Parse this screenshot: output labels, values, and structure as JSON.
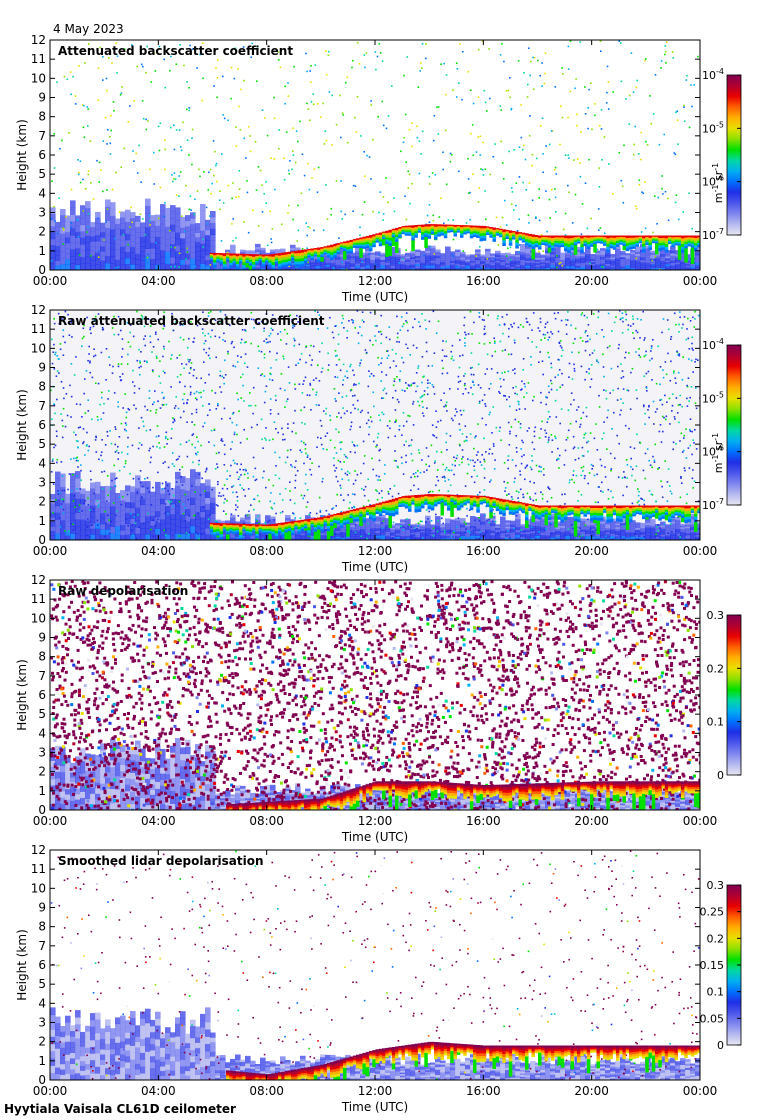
{
  "date": "4 May 2023",
  "footer": "Hyytiala Vaisala CL61D ceilometer",
  "colorscale": [
    "#e8e8f2",
    "#b5b9ef",
    "#7f86ef",
    "#4c56ea",
    "#1f2fe6",
    "#0070ff",
    "#00b0f0",
    "#00d8a0",
    "#00e000",
    "#8ce000",
    "#e8e000",
    "#ffb000",
    "#ff6000",
    "#e80000",
    "#b00030",
    "#820050"
  ],
  "chart_data": [
    {
      "type": "heatmap",
      "title": "Attenuated backscatter coefficient",
      "xlabel": "Time (UTC)",
      "ylabel": "Height (km)",
      "xticks": [
        "00:00",
        "04:00",
        "08:00",
        "12:00",
        "16:00",
        "20:00",
        "00:00"
      ],
      "yticks": [
        "0",
        "1",
        "2",
        "3",
        "4",
        "5",
        "6",
        "7",
        "8",
        "9",
        "10",
        "11",
        "12"
      ],
      "xlim": [
        0,
        24
      ],
      "ylim": [
        0,
        12
      ],
      "colorbar": {
        "scale": "log",
        "range": [
          1e-07,
          0.0001
        ],
        "ticks": [
          {
            "base": "10",
            "exp": "-4"
          },
          {
            "base": "10",
            "exp": "-5"
          },
          {
            "base": "10",
            "exp": "-6"
          },
          {
            "base": "10",
            "exp": "-7"
          }
        ],
        "units": {
          "a": "m",
          "ae": "-1",
          "b": " sr",
          "be": "-1"
        }
      },
      "cloud_base_km": [
        [
          5.9,
          0.9
        ],
        [
          8,
          0.8
        ],
        [
          10,
          1.2
        ],
        [
          12,
          1.9
        ],
        [
          13,
          2.3
        ],
        [
          14,
          2.4
        ],
        [
          16,
          2.3
        ],
        [
          18,
          1.8
        ],
        [
          20.3,
          1.8
        ],
        [
          24,
          1.8
        ]
      ]
    },
    {
      "type": "heatmap",
      "title": "Raw attenuated backscatter coefficient",
      "xlabel": "Time (UTC)",
      "ylabel": "Height (km)",
      "xticks": [
        "00:00",
        "04:00",
        "08:00",
        "12:00",
        "16:00",
        "20:00",
        "00:00"
      ],
      "yticks": [
        "0",
        "1",
        "2",
        "3",
        "4",
        "5",
        "6",
        "7",
        "8",
        "9",
        "10",
        "11",
        "12"
      ],
      "xlim": [
        0,
        24
      ],
      "ylim": [
        0,
        12
      ],
      "colorbar": {
        "scale": "log",
        "range": [
          1e-07,
          0.0001
        ],
        "ticks": [
          {
            "base": "10",
            "exp": "-4"
          },
          {
            "base": "10",
            "exp": "-5"
          },
          {
            "base": "10",
            "exp": "-6"
          },
          {
            "base": "10",
            "exp": "-7"
          }
        ],
        "units": {
          "a": "m",
          "ae": "-1",
          "b": " sr",
          "be": "-1"
        }
      },
      "cloud_base_km": [
        [
          5.9,
          0.9
        ],
        [
          8,
          0.8
        ],
        [
          10,
          1.2
        ],
        [
          12,
          1.9
        ],
        [
          13,
          2.3
        ],
        [
          14,
          2.4
        ],
        [
          16,
          2.3
        ],
        [
          18,
          1.8
        ],
        [
          20.3,
          1.8
        ],
        [
          24,
          1.8
        ]
      ]
    },
    {
      "type": "heatmap",
      "title": "Raw depolarisation",
      "xlabel": "Time (UTC)",
      "ylabel": "Height (km)",
      "xticks": [
        "00:00",
        "04:00",
        "08:00",
        "12:00",
        "16:00",
        "20:00",
        "00:00"
      ],
      "yticks": [
        "0",
        "1",
        "2",
        "3",
        "4",
        "5",
        "6",
        "7",
        "8",
        "9",
        "10",
        "11",
        "12"
      ],
      "xlim": [
        0,
        24
      ],
      "ylim": [
        0,
        12
      ],
      "colorbar": {
        "scale": "linear",
        "range": [
          0,
          0.3
        ],
        "ticks": [
          {
            "base": "0.3",
            "exp": ""
          },
          {
            "base": "0.2",
            "exp": ""
          },
          {
            "base": "0.1",
            "exp": ""
          },
          {
            "base": "0",
            "exp": ""
          }
        ]
      },
      "cloud_base_km": [
        [
          6.5,
          0.3
        ],
        [
          10,
          0.6
        ],
        [
          12,
          1.5
        ],
        [
          14,
          1.5
        ],
        [
          16,
          1.3
        ],
        [
          20.3,
          1.5
        ],
        [
          24,
          1.5
        ]
      ]
    },
    {
      "type": "heatmap",
      "title": "Smoothed lidar depolarisation",
      "xlabel": "Time (UTC)",
      "ylabel": "Height (km)",
      "xticks": [
        "00:00",
        "04:00",
        "08:00",
        "12:00",
        "16:00",
        "20:00",
        "00:00"
      ],
      "yticks": [
        "0",
        "1",
        "2",
        "3",
        "4",
        "5",
        "6",
        "7",
        "8",
        "9",
        "10",
        "11",
        "12"
      ],
      "xlim": [
        0,
        24
      ],
      "ylim": [
        0,
        12
      ],
      "colorbar": {
        "scale": "linear",
        "range": [
          0,
          0.3
        ],
        "ticks": [
          {
            "base": "0.3",
            "exp": ""
          },
          {
            "base": "0.25",
            "exp": ""
          },
          {
            "base": "0.2",
            "exp": ""
          },
          {
            "base": "0.15",
            "exp": ""
          },
          {
            "base": "0.1",
            "exp": ""
          },
          {
            "base": "0.05",
            "exp": ""
          },
          {
            "base": "0",
            "exp": ""
          }
        ]
      },
      "cloud_base_km": [
        [
          6.5,
          0.5
        ],
        [
          8,
          0.3
        ],
        [
          10,
          0.8
        ],
        [
          12,
          1.6
        ],
        [
          14,
          2.0
        ],
        [
          16,
          1.8
        ],
        [
          20.3,
          1.8
        ],
        [
          24,
          1.8
        ]
      ]
    }
  ]
}
